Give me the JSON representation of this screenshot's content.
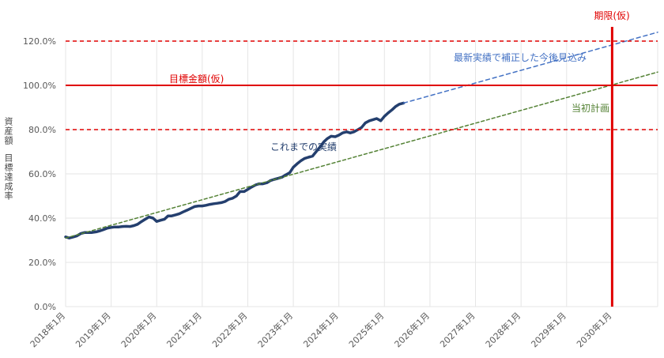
{
  "chart_data": {
    "type": "line",
    "ylabel_line1": "資産額",
    "ylabel_line2": "目標達成率",
    "ylim": [
      0,
      1.2
    ],
    "xlim": [
      2018.0,
      2031.0
    ],
    "yticks": [
      {
        "value": 0.0,
        "label": "0.0%"
      },
      {
        "value": 0.2,
        "label": "20.0%"
      },
      {
        "value": 0.4,
        "label": "40.0%"
      },
      {
        "value": 0.6,
        "label": "60.0%"
      },
      {
        "value": 0.8,
        "label": "80.0%"
      },
      {
        "value": 1.0,
        "label": "100.0%"
      },
      {
        "value": 1.2,
        "label": "120.0%"
      }
    ],
    "xticks": [
      {
        "value": 2018,
        "label": "2018年1月"
      },
      {
        "value": 2019,
        "label": "2019年1月"
      },
      {
        "value": 2020,
        "label": "2020年1月"
      },
      {
        "value": 2021,
        "label": "2021年1月"
      },
      {
        "value": 2022,
        "label": "2022年1月"
      },
      {
        "value": 2023,
        "label": "2023年1月"
      },
      {
        "value": 2024,
        "label": "2024年1月"
      },
      {
        "value": 2025,
        "label": "2025年1月"
      },
      {
        "value": 2026,
        "label": "2026年1月"
      },
      {
        "value": 2027,
        "label": "2027年1月"
      },
      {
        "value": 2028,
        "label": "2028年1月"
      },
      {
        "value": 2029,
        "label": "2029年1月"
      },
      {
        "value": 2030,
        "label": "2030年1月"
      }
    ],
    "colors": {
      "actual": "#243f6e",
      "projection": "#4472c4",
      "plan": "#548235",
      "target": "#e00000",
      "grid": "#e6e6e6",
      "axis_text": "#595959"
    },
    "series": [
      {
        "name": "これまでの実績",
        "style": "solid",
        "x": [
          2018.0,
          2018.08,
          2018.17,
          2018.25,
          2018.33,
          2018.42,
          2018.5,
          2018.58,
          2018.67,
          2018.75,
          2018.83,
          2018.92,
          2019.0,
          2019.08,
          2019.17,
          2019.25,
          2019.33,
          2019.42,
          2019.5,
          2019.58,
          2019.67,
          2019.75,
          2019.83,
          2019.92,
          2020.0,
          2020.08,
          2020.17,
          2020.25,
          2020.33,
          2020.42,
          2020.5,
          2020.58,
          2020.67,
          2020.75,
          2020.83,
          2020.92,
          2021.0,
          2021.08,
          2021.17,
          2021.25,
          2021.33,
          2021.42,
          2021.5,
          2021.58,
          2021.67,
          2021.75,
          2021.83,
          2021.92,
          2022.0,
          2022.08,
          2022.17,
          2022.25,
          2022.33,
          2022.42,
          2022.5,
          2022.58,
          2022.67,
          2022.75,
          2022.83,
          2022.92,
          2023.0,
          2023.08,
          2023.17,
          2023.25,
          2023.33,
          2023.42,
          2023.5,
          2023.58,
          2023.67,
          2023.75,
          2023.83,
          2023.92,
          2024.0,
          2024.08,
          2024.17,
          2024.25,
          2024.33,
          2024.42,
          2024.5,
          2024.58,
          2024.67,
          2024.75,
          2024.83,
          2024.92,
          2025.0,
          2025.08,
          2025.17,
          2025.25,
          2025.33,
          2025.42
        ],
        "values": [
          0.315,
          0.31,
          0.315,
          0.32,
          0.33,
          0.335,
          0.335,
          0.335,
          0.338,
          0.342,
          0.348,
          0.355,
          0.358,
          0.36,
          0.36,
          0.362,
          0.363,
          0.362,
          0.366,
          0.372,
          0.385,
          0.395,
          0.405,
          0.4,
          0.385,
          0.39,
          0.395,
          0.41,
          0.41,
          0.415,
          0.42,
          0.428,
          0.436,
          0.444,
          0.452,
          0.455,
          0.455,
          0.458,
          0.462,
          0.465,
          0.467,
          0.47,
          0.475,
          0.485,
          0.49,
          0.5,
          0.52,
          0.52,
          0.53,
          0.54,
          0.55,
          0.555,
          0.555,
          0.56,
          0.57,
          0.575,
          0.58,
          0.585,
          0.595,
          0.605,
          0.63,
          0.645,
          0.66,
          0.67,
          0.675,
          0.68,
          0.7,
          0.72,
          0.745,
          0.76,
          0.77,
          0.768,
          0.775,
          0.785,
          0.79,
          0.785,
          0.79,
          0.8,
          0.81,
          0.83,
          0.84,
          0.845,
          0.85,
          0.84,
          0.86,
          0.875,
          0.89,
          0.905,
          0.915,
          0.92
        ]
      },
      {
        "name": "最新実績で補正した今後見込み",
        "style": "dashed",
        "x": [
          2025.42,
          2031.0
        ],
        "values": [
          0.92,
          1.24
        ]
      },
      {
        "name": "当初計画",
        "style": "dashed",
        "x": [
          2018.0,
          2031.0
        ],
        "values": [
          0.31,
          1.06
        ]
      }
    ],
    "reference_lines": [
      {
        "type": "hline",
        "value": 1.0,
        "style": "solid",
        "label": "目標金額(仮)"
      },
      {
        "type": "hline",
        "value": 1.2,
        "style": "dashed"
      },
      {
        "type": "hline",
        "value": 0.8,
        "style": "dashed"
      },
      {
        "type": "vline",
        "value": 2030.0,
        "style": "solid",
        "label": "期限(仮)"
      }
    ],
    "annotations": {
      "actual": "これまでの実績",
      "projection": "最新実績で補正した今後見込み",
      "plan": "当初計画",
      "target": "目標金額(仮)",
      "deadline": "期限(仮)"
    }
  }
}
